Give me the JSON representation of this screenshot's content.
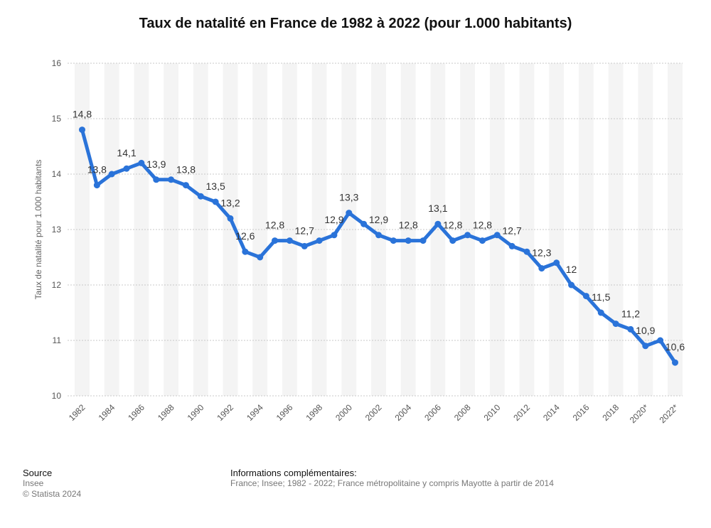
{
  "title": "Taux de natalité en France de 1982 à 2022 (pour 1.000 habitants)",
  "footer": {
    "source_heading": "Source",
    "source_name": "Insee",
    "copyright": "© Statista 2024",
    "info_heading": "Informations complémentaires:",
    "info_text": "France; Insee; 1982 - 2022; France métropolitaine y compris Mayotte à partir de 2014"
  },
  "colors": {
    "line": "#2a73d9",
    "band": "#f4f4f4",
    "grid": "#c8c8c8"
  },
  "chart_data": {
    "type": "line",
    "title": "Taux de natalité en France de 1982 à 2022 (pour 1.000 habitants)",
    "ylabel": "Taux de natalité pour 1.000 habitants",
    "xlabel": "",
    "ylim": [
      10,
      16
    ],
    "yticks": [
      10,
      11,
      12,
      13,
      14,
      15,
      16
    ],
    "grid": true,
    "x": [
      1982,
      1983,
      1984,
      1985,
      1986,
      1987,
      1988,
      1989,
      1990,
      1991,
      1992,
      1993,
      1994,
      1995,
      1996,
      1997,
      1998,
      1999,
      2000,
      2001,
      2002,
      2003,
      2004,
      2005,
      2006,
      2007,
      2008,
      2009,
      2010,
      2011,
      2012,
      2013,
      2014,
      2015,
      2016,
      2017,
      2018,
      2019,
      2020,
      2021,
      2022
    ],
    "xtick_labels": [
      "1982",
      "1984",
      "1986",
      "1988",
      "1990",
      "1992",
      "1994",
      "1996",
      "1998",
      "2000",
      "2002",
      "2004",
      "2006",
      "2008",
      "2010",
      "2012",
      "2014",
      "2016",
      "2018",
      "2020*",
      "2022*"
    ],
    "values": [
      14.8,
      13.8,
      14.0,
      14.1,
      14.2,
      13.9,
      13.9,
      13.8,
      13.6,
      13.5,
      13.2,
      12.6,
      12.5,
      12.8,
      12.8,
      12.7,
      12.8,
      12.9,
      13.3,
      13.1,
      12.9,
      12.8,
      12.8,
      12.8,
      13.1,
      12.8,
      12.9,
      12.8,
      12.9,
      12.7,
      12.6,
      12.3,
      12.4,
      12.0,
      11.8,
      11.5,
      11.3,
      11.2,
      10.9,
      11.0,
      10.6
    ],
    "data_labels": [
      {
        "index": 0,
        "text": "14,8"
      },
      {
        "index": 1,
        "text": "13,8"
      },
      {
        "index": 3,
        "text": "14,1"
      },
      {
        "index": 5,
        "text": "13,9"
      },
      {
        "index": 7,
        "text": "13,8"
      },
      {
        "index": 9,
        "text": "13,5"
      },
      {
        "index": 10,
        "text": "13,2"
      },
      {
        "index": 11,
        "text": "12,6"
      },
      {
        "index": 13,
        "text": "12,8"
      },
      {
        "index": 15,
        "text": "12,7"
      },
      {
        "index": 17,
        "text": "12,9"
      },
      {
        "index": 18,
        "text": "13,3"
      },
      {
        "index": 20,
        "text": "12,9"
      },
      {
        "index": 22,
        "text": "12,8"
      },
      {
        "index": 24,
        "text": "13,1"
      },
      {
        "index": 25,
        "text": "12,8"
      },
      {
        "index": 27,
        "text": "12,8"
      },
      {
        "index": 29,
        "text": "12,7"
      },
      {
        "index": 31,
        "text": "12,3"
      },
      {
        "index": 33,
        "text": "12"
      },
      {
        "index": 35,
        "text": "11,5"
      },
      {
        "index": 37,
        "text": "11,2"
      },
      {
        "index": 38,
        "text": "10,9"
      },
      {
        "index": 40,
        "text": "10,6"
      }
    ]
  }
}
